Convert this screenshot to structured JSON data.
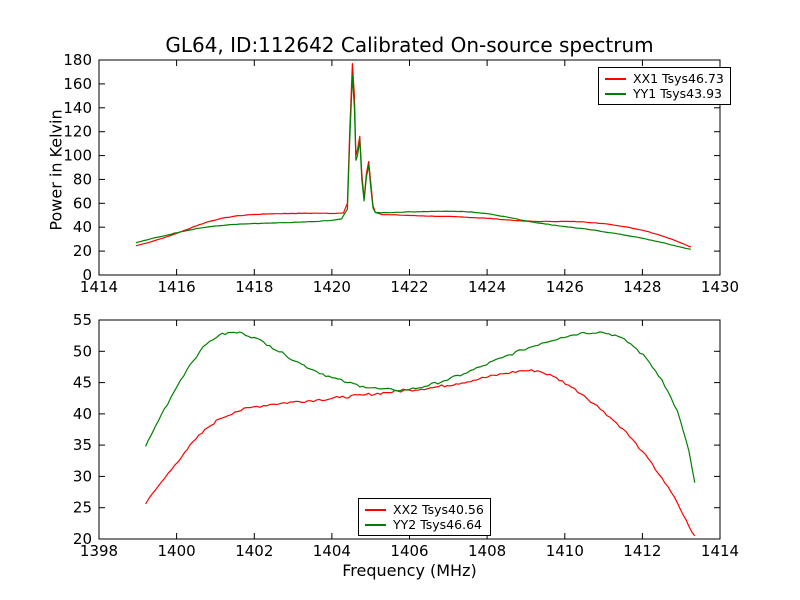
{
  "figure": {
    "title": "GL64, ID:112642 Calibrated On-source spectrum",
    "background": "#ffffff",
    "axis_color": "#000000"
  },
  "chart_data": [
    {
      "type": "line",
      "ylabel": "Power in Kelvin",
      "xlabel": "",
      "xlim": [
        1414,
        1430
      ],
      "ylim": [
        0,
        180
      ],
      "xticks": [
        1414,
        1416,
        1418,
        1420,
        1422,
        1424,
        1426,
        1428,
        1430
      ],
      "yticks": [
        0,
        20,
        40,
        60,
        80,
        100,
        120,
        140,
        160,
        180
      ],
      "grid": false,
      "legend": {
        "position": "upper right",
        "entries": [
          {
            "label": "XX1 Tsys46.73",
            "color": "#ff0000"
          },
          {
            "label": "YY1 Tsys43.93",
            "color": "#008000"
          }
        ]
      },
      "series": [
        {
          "name": "XX1",
          "color": "#ff0000",
          "noise": 0.2,
          "points": [
            [
              1414.95,
              24.5
            ],
            [
              1415.2,
              26.5
            ],
            [
              1415.5,
              29.5
            ],
            [
              1415.8,
              32.5
            ],
            [
              1416.1,
              36
            ],
            [
              1416.45,
              40.5
            ],
            [
              1416.8,
              44.5
            ],
            [
              1417.1,
              47
            ],
            [
              1417.5,
              49.3
            ],
            [
              1417.9,
              50.5
            ],
            [
              1418.4,
              51.2
            ],
            [
              1419.0,
              51.6
            ],
            [
              1419.6,
              51.7
            ],
            [
              1420.1,
              51.6
            ],
            [
              1420.3,
              52
            ],
            [
              1420.4,
              60
            ],
            [
              1420.46,
              120
            ],
            [
              1420.53,
              177
            ],
            [
              1420.58,
              150
            ],
            [
              1420.62,
              100
            ],
            [
              1420.66,
              105
            ],
            [
              1420.72,
              116
            ],
            [
              1420.77,
              85
            ],
            [
              1420.83,
              64
            ],
            [
              1420.89,
              85
            ],
            [
              1420.95,
              95
            ],
            [
              1421.0,
              78
            ],
            [
              1421.06,
              58
            ],
            [
              1421.12,
              52.5
            ],
            [
              1421.3,
              50.6
            ],
            [
              1421.7,
              50.2
            ],
            [
              1422.2,
              49.6
            ],
            [
              1422.8,
              49.1
            ],
            [
              1423.4,
              48.5
            ],
            [
              1424.0,
              47.5
            ],
            [
              1424.5,
              46.2
            ],
            [
              1424.9,
              45.2
            ],
            [
              1425.4,
              44.8
            ],
            [
              1425.9,
              44.9
            ],
            [
              1426.4,
              44.6
            ],
            [
              1426.8,
              43.7
            ],
            [
              1427.2,
              42.2
            ],
            [
              1427.6,
              40.2
            ],
            [
              1428.0,
              37.5
            ],
            [
              1428.4,
              34
            ],
            [
              1428.8,
              29.5
            ],
            [
              1429.1,
              25.5
            ],
            [
              1429.25,
              23.5
            ]
          ]
        },
        {
          "name": "YY1",
          "color": "#008000",
          "noise": 0.2,
          "points": [
            [
              1414.95,
              27
            ],
            [
              1415.3,
              30
            ],
            [
              1415.7,
              33
            ],
            [
              1416.1,
              36.2
            ],
            [
              1416.5,
              38.8
            ],
            [
              1416.9,
              40.6
            ],
            [
              1417.3,
              41.9
            ],
            [
              1417.8,
              42.8
            ],
            [
              1418.4,
              43.4
            ],
            [
              1419.0,
              44.0
            ],
            [
              1419.6,
              44.8
            ],
            [
              1420.0,
              45.8
            ],
            [
              1420.25,
              47
            ],
            [
              1420.4,
              55
            ],
            [
              1420.46,
              112
            ],
            [
              1420.53,
              167
            ],
            [
              1420.58,
              140
            ],
            [
              1420.62,
              96
            ],
            [
              1420.66,
              100
            ],
            [
              1420.72,
              113
            ],
            [
              1420.77,
              80
            ],
            [
              1420.83,
              62
            ],
            [
              1420.89,
              82
            ],
            [
              1420.95,
              92
            ],
            [
              1421.0,
              74
            ],
            [
              1421.06,
              56
            ],
            [
              1421.12,
              52.3
            ],
            [
              1421.4,
              52.2
            ],
            [
              1421.9,
              52.8
            ],
            [
              1422.5,
              53.2
            ],
            [
              1423.1,
              53.4
            ],
            [
              1423.6,
              52.8
            ],
            [
              1424.1,
              51
            ],
            [
              1424.6,
              48
            ],
            [
              1425.0,
              45.3
            ],
            [
              1425.5,
              42.7
            ],
            [
              1426.0,
              40.6
            ],
            [
              1426.6,
              38.2
            ],
            [
              1427.2,
              35.3
            ],
            [
              1427.8,
              32
            ],
            [
              1428.4,
              28
            ],
            [
              1428.9,
              24
            ],
            [
              1429.25,
              21.5
            ]
          ]
        }
      ]
    },
    {
      "type": "line",
      "ylabel": "",
      "xlabel": "Frequency (MHz)",
      "xlim": [
        1398,
        1414
      ],
      "ylim": [
        20,
        55
      ],
      "xticks": [
        1398,
        1400,
        1402,
        1404,
        1406,
        1408,
        1410,
        1412,
        1414
      ],
      "yticks": [
        20,
        25,
        30,
        35,
        40,
        45,
        50,
        55
      ],
      "grid": false,
      "legend": {
        "position": "lower center",
        "entries": [
          {
            "label": "XX2 Tsys40.56",
            "color": "#ff0000"
          },
          {
            "label": "YY2 Tsys46.64",
            "color": "#008000"
          }
        ]
      },
      "series": [
        {
          "name": "XX2",
          "color": "#ff0000",
          "noise": 0.22,
          "points": [
            [
              1399.2,
              25.6
            ],
            [
              1399.45,
              27.8
            ],
            [
              1399.7,
              29.8
            ],
            [
              1399.95,
              31.8
            ],
            [
              1400.2,
              33.8
            ],
            [
              1400.5,
              36
            ],
            [
              1400.8,
              37.8
            ],
            [
              1401.1,
              39.2
            ],
            [
              1401.5,
              40.3
            ],
            [
              1401.9,
              41
            ],
            [
              1402.4,
              41.5
            ],
            [
              1403.0,
              41.9
            ],
            [
              1403.6,
              42.2
            ],
            [
              1404.2,
              42.6
            ],
            [
              1404.8,
              43
            ],
            [
              1405.4,
              43.4
            ],
            [
              1406.0,
              43.8
            ],
            [
              1406.6,
              44.2
            ],
            [
              1407.2,
              44.8
            ],
            [
              1407.8,
              45.6
            ],
            [
              1408.4,
              46.4
            ],
            [
              1408.9,
              46.9
            ],
            [
              1409.3,
              46.9
            ],
            [
              1409.7,
              46
            ],
            [
              1410.1,
              44.6
            ],
            [
              1410.5,
              42.9
            ],
            [
              1411.0,
              40.4
            ],
            [
              1411.5,
              37.6
            ],
            [
              1412.0,
              34
            ],
            [
              1412.5,
              29.8
            ],
            [
              1412.9,
              25.8
            ],
            [
              1413.2,
              22
            ],
            [
              1413.35,
              20.5
            ]
          ]
        },
        {
          "name": "YY2",
          "color": "#008000",
          "noise": 0.22,
          "points": [
            [
              1399.2,
              34.8
            ],
            [
              1399.4,
              37.3
            ],
            [
              1399.6,
              39.8
            ],
            [
              1399.85,
              42.6
            ],
            [
              1400.1,
              45.4
            ],
            [
              1400.35,
              47.9
            ],
            [
              1400.6,
              50
            ],
            [
              1400.85,
              51.6
            ],
            [
              1401.1,
              52.6
            ],
            [
              1401.4,
              53
            ],
            [
              1401.7,
              52.9
            ],
            [
              1402.0,
              52.2
            ],
            [
              1402.4,
              50.9
            ],
            [
              1402.8,
              49.4
            ],
            [
              1403.2,
              48
            ],
            [
              1403.6,
              46.8
            ],
            [
              1404.0,
              45.8
            ],
            [
              1404.4,
              45
            ],
            [
              1404.8,
              44.4
            ],
            [
              1405.2,
              44
            ],
            [
              1405.6,
              43.8
            ],
            [
              1406.0,
              43.9
            ],
            [
              1406.4,
              44.4
            ],
            [
              1406.9,
              45.3
            ],
            [
              1407.4,
              46.4
            ],
            [
              1407.9,
              47.7
            ],
            [
              1408.4,
              49
            ],
            [
              1408.9,
              50.2
            ],
            [
              1409.4,
              51.3
            ],
            [
              1409.9,
              52.2
            ],
            [
              1410.4,
              52.9
            ],
            [
              1410.9,
              53.1
            ],
            [
              1411.3,
              52.6
            ],
            [
              1411.7,
              51.2
            ],
            [
              1412.1,
              48.9
            ],
            [
              1412.5,
              45.5
            ],
            [
              1412.9,
              40.5
            ],
            [
              1413.2,
              34
            ],
            [
              1413.35,
              29
            ]
          ]
        }
      ]
    }
  ]
}
